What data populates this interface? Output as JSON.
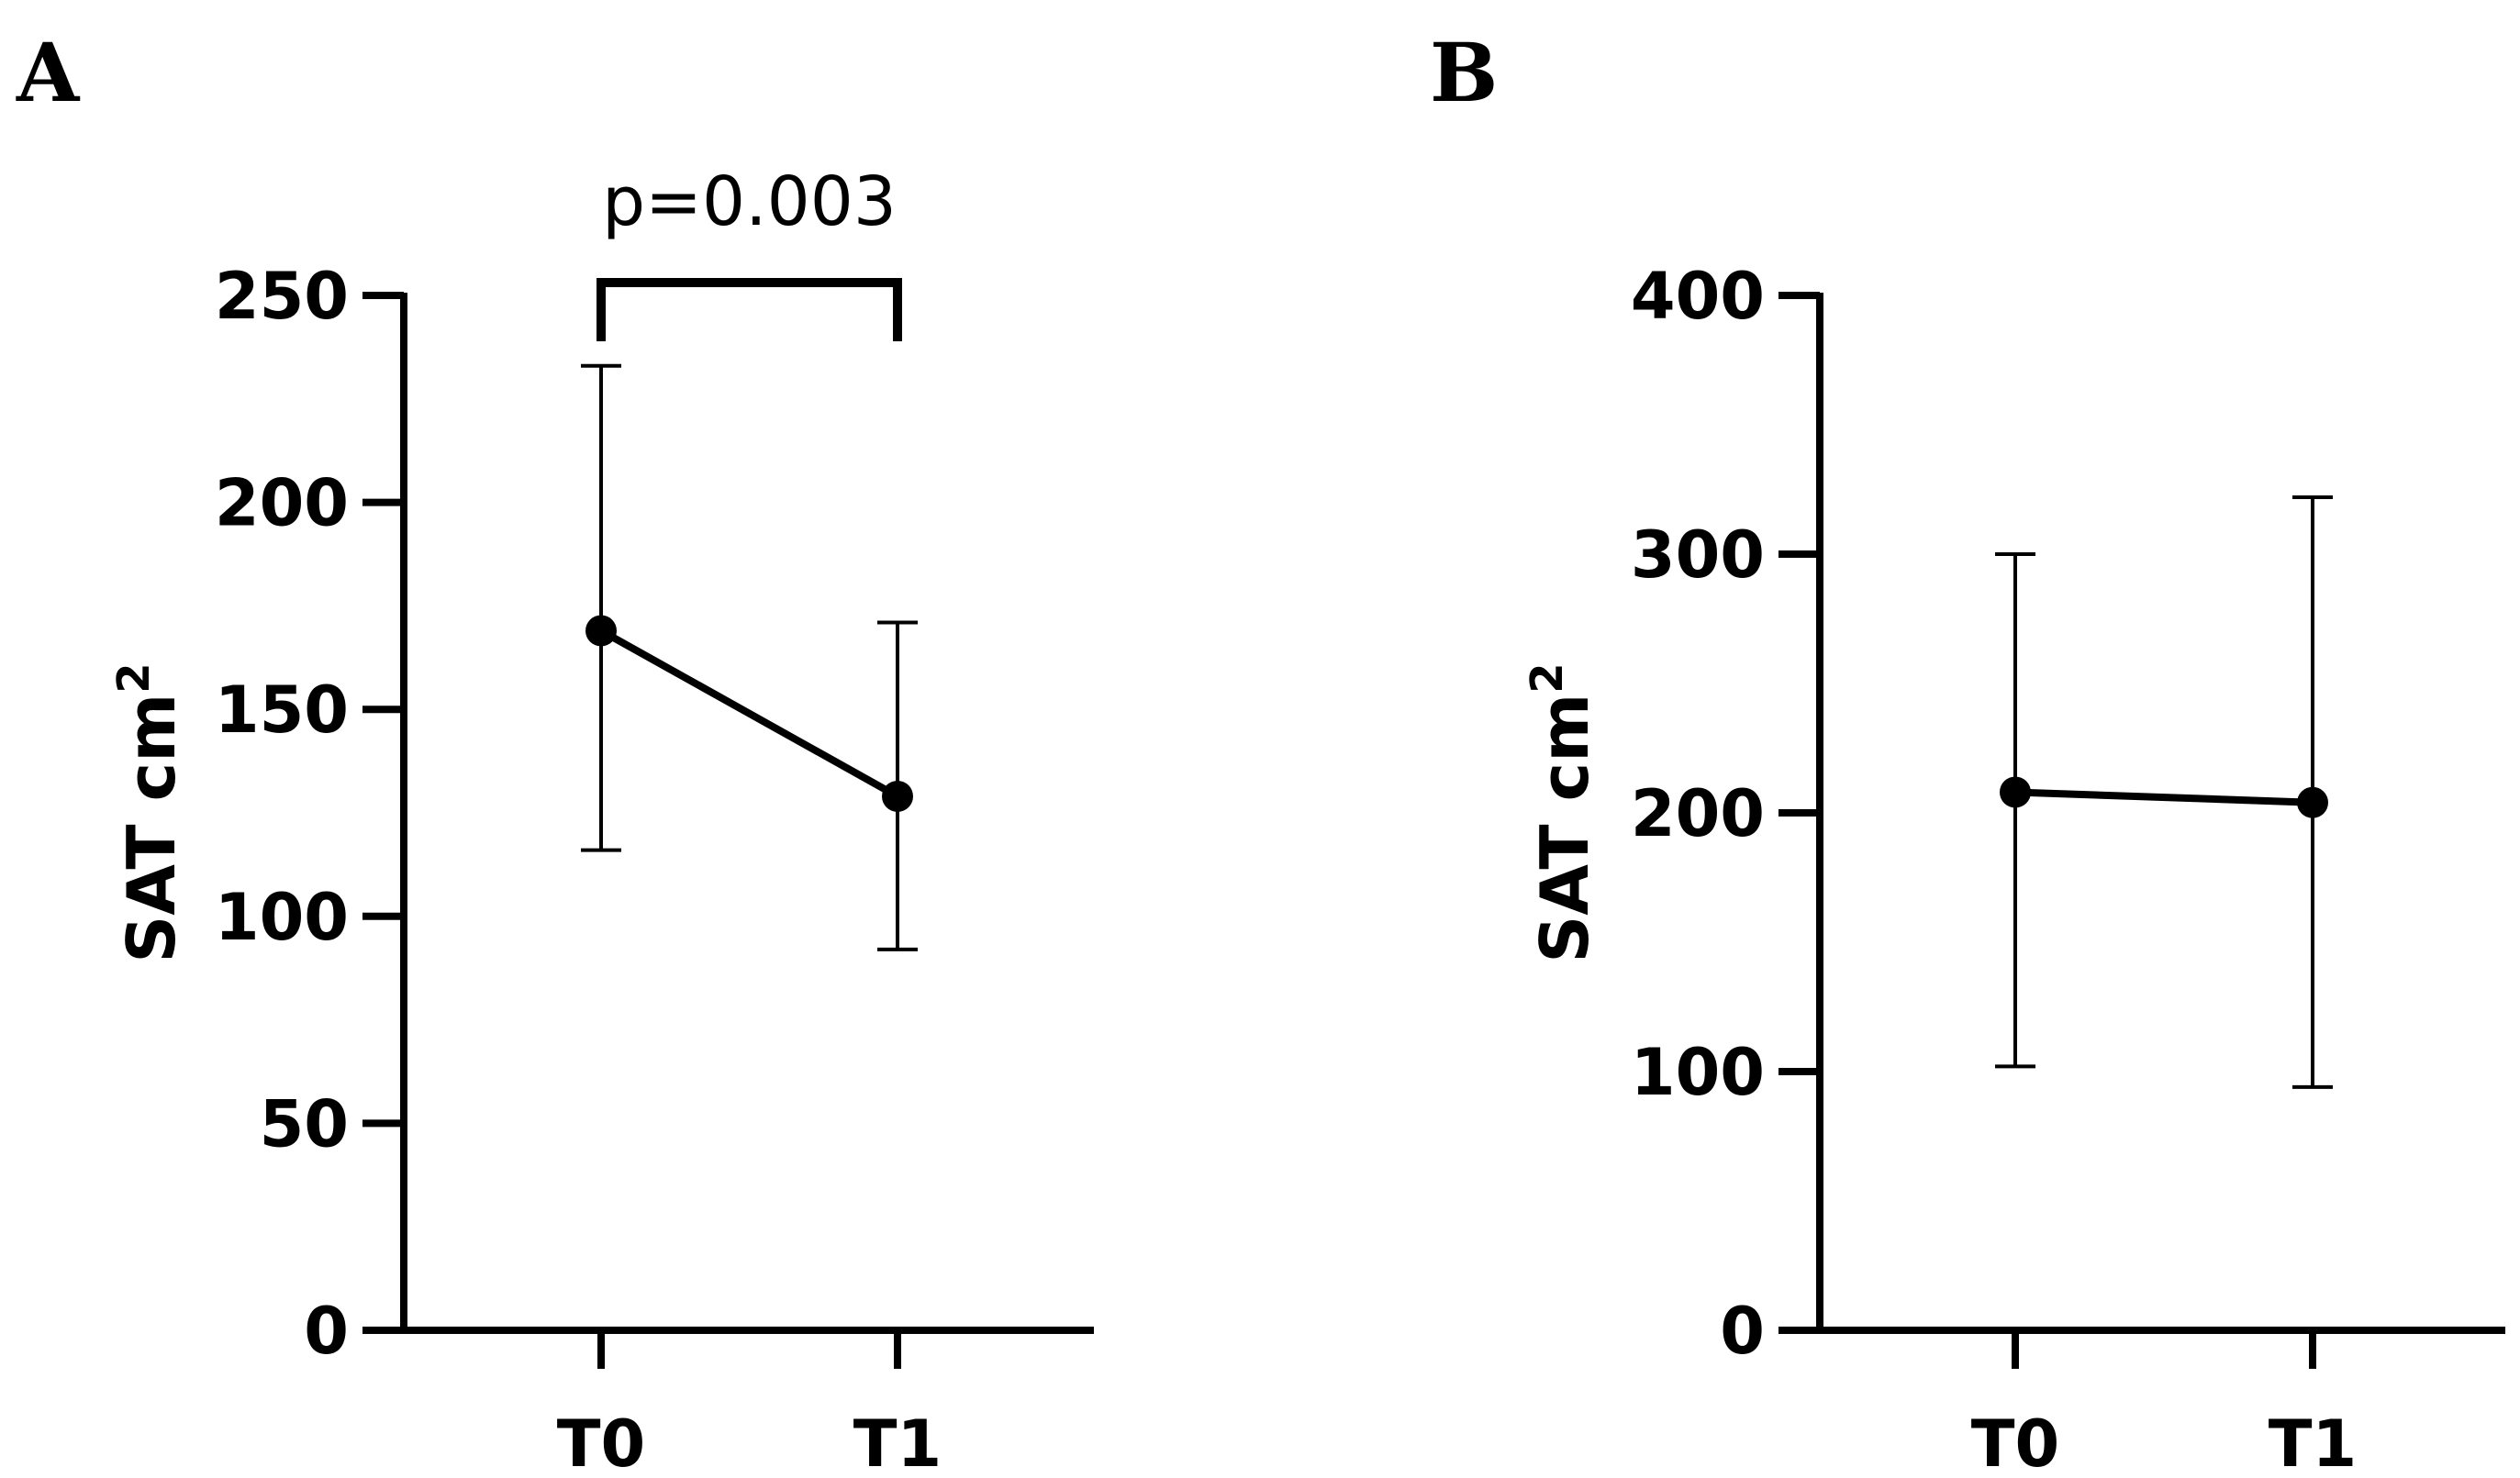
{
  "chart_data": [
    {
      "type": "line",
      "panel": "A",
      "title": "",
      "xlabel": "",
      "ylabel": "SAT cm",
      "ylabel_superscript": "2",
      "categories": [
        "T0",
        "T1"
      ],
      "ylim": [
        0,
        250
      ],
      "yticks": [
        "0",
        "50",
        "100",
        "150",
        "200",
        "250"
      ],
      "grid": false,
      "series": [
        {
          "values": [
            169,
            129
          ],
          "error_low": [
            116,
            92
          ],
          "error_high": [
            233,
            171
          ]
        }
      ],
      "annotation": {
        "text": "p=0.003",
        "from": "T0",
        "to": "T1"
      }
    },
    {
      "type": "line",
      "panel": "B",
      "title": "",
      "xlabel": "",
      "ylabel": "SAT cm",
      "ylabel_superscript": "2",
      "categories": [
        "T0",
        "T1"
      ],
      "ylim": [
        0,
        400
      ],
      "yticks": [
        "0",
        "100",
        "200",
        "300",
        "400"
      ],
      "grid": false,
      "series": [
        {
          "values": [
            208,
            204
          ],
          "error_low": [
            102,
            94
          ],
          "error_high": [
            300,
            322
          ]
        }
      ]
    }
  ]
}
